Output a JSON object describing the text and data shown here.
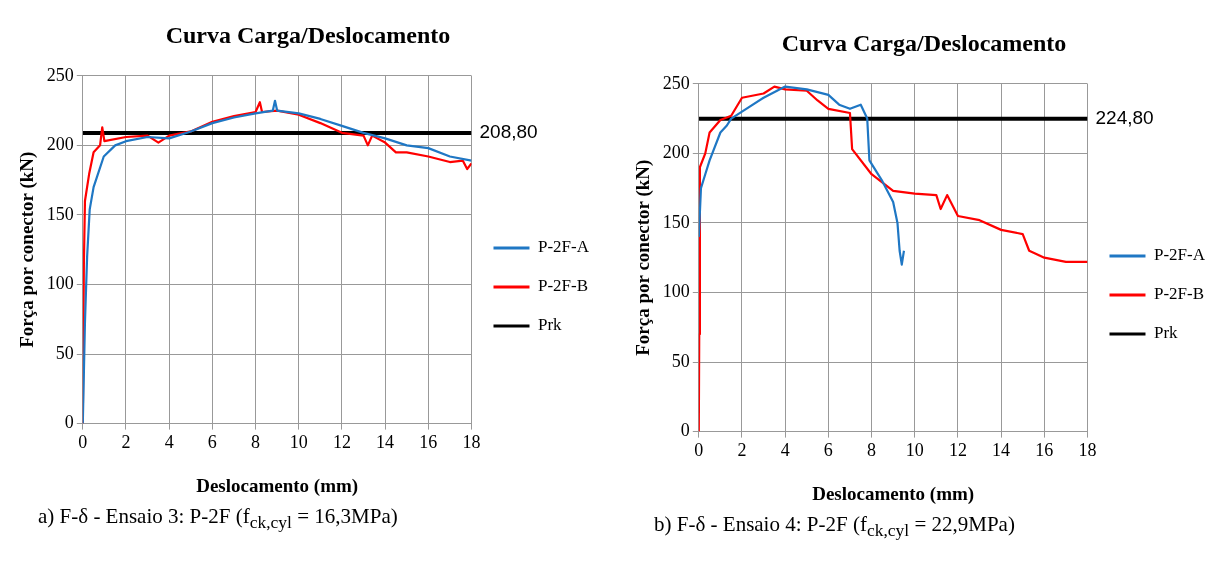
{
  "chart_data": [
    {
      "type": "line",
      "title": "Curva Carga/Deslocamento",
      "xlabel": "Deslocamento (mm)",
      "ylabel": "Força por conector (kN)",
      "xlim": [
        0,
        18
      ],
      "xticks": [
        0,
        2,
        4,
        6,
        8,
        10,
        12,
        14,
        16,
        18
      ],
      "ylim": [
        0,
        250
      ],
      "yticks": [
        0,
        50,
        100,
        150,
        200,
        250
      ],
      "grid": true,
      "legend": "right",
      "series": [
        {
          "name": "P-2F-A",
          "color": "#1f77c4",
          "x": [
            0,
            0.1,
            0.2,
            0.32,
            0.5,
            0.65,
            0.97,
            1.5,
            2,
            3,
            4,
            5,
            6,
            7,
            8,
            8.8,
            8.9,
            9,
            10,
            11,
            12,
            13,
            14,
            15,
            16,
            17,
            18
          ],
          "values": [
            0,
            73,
            120,
            154,
            170,
            177,
            192,
            200,
            203,
            206,
            205,
            210,
            216,
            220,
            223,
            225,
            232,
            225,
            223,
            219,
            214,
            209,
            205,
            200,
            198,
            192,
            189
          ]
        },
        {
          "name": "P-2F-B",
          "color": "#ff0000",
          "x": [
            0,
            0.05,
            0.1,
            0.3,
            0.5,
            0.8,
            0.9,
            1,
            2,
            3,
            3.5,
            4,
            5,
            6,
            7,
            8,
            8.2,
            8.3,
            9,
            10,
            11,
            12,
            13,
            13.2,
            13.4,
            14,
            14.5,
            15,
            16,
            17,
            17.6,
            17.8,
            18
          ],
          "values": [
            0,
            115,
            160,
            180,
            195,
            200,
            213,
            203,
            206,
            207,
            202,
            207,
            210,
            217,
            221,
            224,
            231,
            224,
            225,
            222,
            216,
            209,
            207,
            200,
            207,
            202,
            195,
            195,
            192,
            188,
            189,
            183,
            187
          ]
        },
        {
          "name": "Prk",
          "color": "#000000",
          "x": [
            0,
            18
          ],
          "values": [
            208.8,
            208.8
          ]
        }
      ],
      "annotations": [
        {
          "text": "208,80",
          "x": 18,
          "y": 208.8
        },
        "a) F-δ - Ensaio 3: P-2F (f$_{ck,cyl}$ = 16,3MPa)"
      ]
    },
    {
      "type": "line",
      "title": "Curva Carga/Deslocamento",
      "xlabel": "Deslocamento (mm)",
      "ylabel": "Força por conector (kN)",
      "xlim": [
        0,
        18
      ],
      "xticks": [
        0,
        2,
        4,
        6,
        8,
        10,
        12,
        14,
        16,
        18
      ],
      "ylim": [
        0,
        250
      ],
      "yticks": [
        0,
        50,
        100,
        150,
        200,
        250
      ],
      "grid": true,
      "legend": "right",
      "series": [
        {
          "name": "P-2F-A",
          "color": "#1f77c4",
          "x": [
            0,
            0.1,
            0.3,
            0.5,
            1,
            1.3,
            1.5,
            2,
            3,
            4,
            5,
            6,
            6.5,
            7,
            7.5,
            7.8,
            7.9,
            8.5,
            9,
            9.2,
            9.3,
            9.4,
            9.5
          ],
          "values": [
            140,
            175,
            185,
            195,
            215,
            220,
            225,
            230,
            240,
            248,
            246,
            242,
            235,
            232,
            235,
            225,
            195,
            180,
            165,
            150,
            130,
            120,
            130
          ]
        },
        {
          "name": "P-2F-B",
          "color": "#ff0000",
          "x": [
            0,
            0.02,
            0.05,
            0.3,
            0.5,
            1,
            1.5,
            2,
            3,
            3.5,
            4,
            5,
            5.5,
            6,
            7,
            7.1,
            8,
            9,
            10,
            11,
            11.2,
            11.5,
            12,
            13,
            14,
            15,
            15.3,
            16,
            17,
            18
          ],
          "values": [
            0,
            70,
            190,
            200,
            215,
            224,
            227,
            240,
            243,
            248,
            246,
            245,
            238,
            232,
            229,
            203,
            185,
            173,
            171,
            170,
            160,
            170,
            155,
            152,
            145,
            142,
            130,
            125,
            122,
            122
          ]
        },
        {
          "name": "Prk",
          "color": "#000000",
          "x": [
            0,
            18
          ],
          "values": [
            224.8,
            224.8
          ]
        }
      ],
      "annotations": [
        {
          "text": "224,80",
          "x": 18,
          "y": 224.8
        },
        "b) F-δ - Ensaio 4: P-2F (f$_{ck,cyl}$ = 22,9MPa)"
      ]
    }
  ]
}
